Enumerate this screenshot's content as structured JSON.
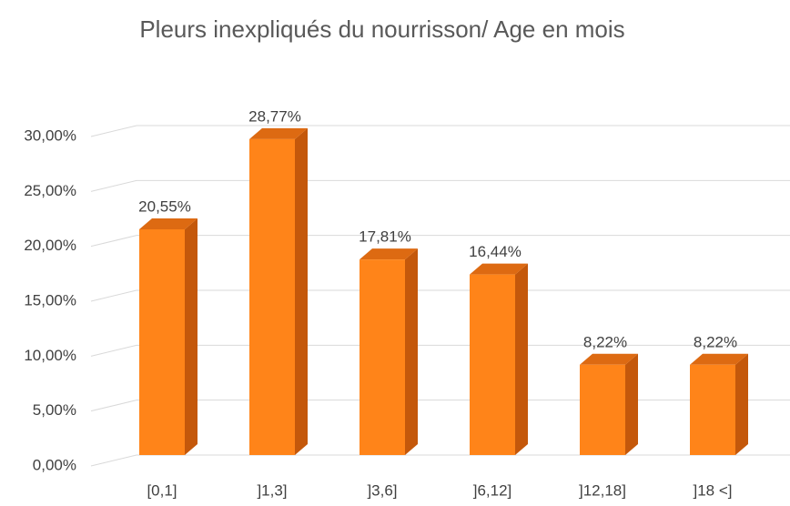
{
  "chart_data": {
    "type": "bar3d",
    "title": "Pleurs inexpliqués du nourrisson/ Age en mois",
    "categories": [
      "[0,1]",
      "]1,3]",
      "]3,6]",
      "]6,12]",
      "]12,18]",
      "]18 <]"
    ],
    "values": [
      20.55,
      28.77,
      17.81,
      16.44,
      8.22,
      8.22
    ],
    "value_labels": [
      "20,55%",
      "28,77%",
      "17,81%",
      "16,44%",
      "8,22%",
      "8,22%"
    ],
    "color": "#ff8419",
    "ylim": [
      0,
      30
    ],
    "yticks": [
      {
        "value": 0,
        "label": "0,00%"
      },
      {
        "value": 5,
        "label": "5,00%"
      },
      {
        "value": 10,
        "label": "10,00%"
      },
      {
        "value": 15,
        "label": "15,00%"
      },
      {
        "value": 20,
        "label": "20,00%"
      },
      {
        "value": 25,
        "label": "25,00%"
      },
      {
        "value": 30,
        "label": "30,00%"
      }
    ],
    "grid": true
  }
}
